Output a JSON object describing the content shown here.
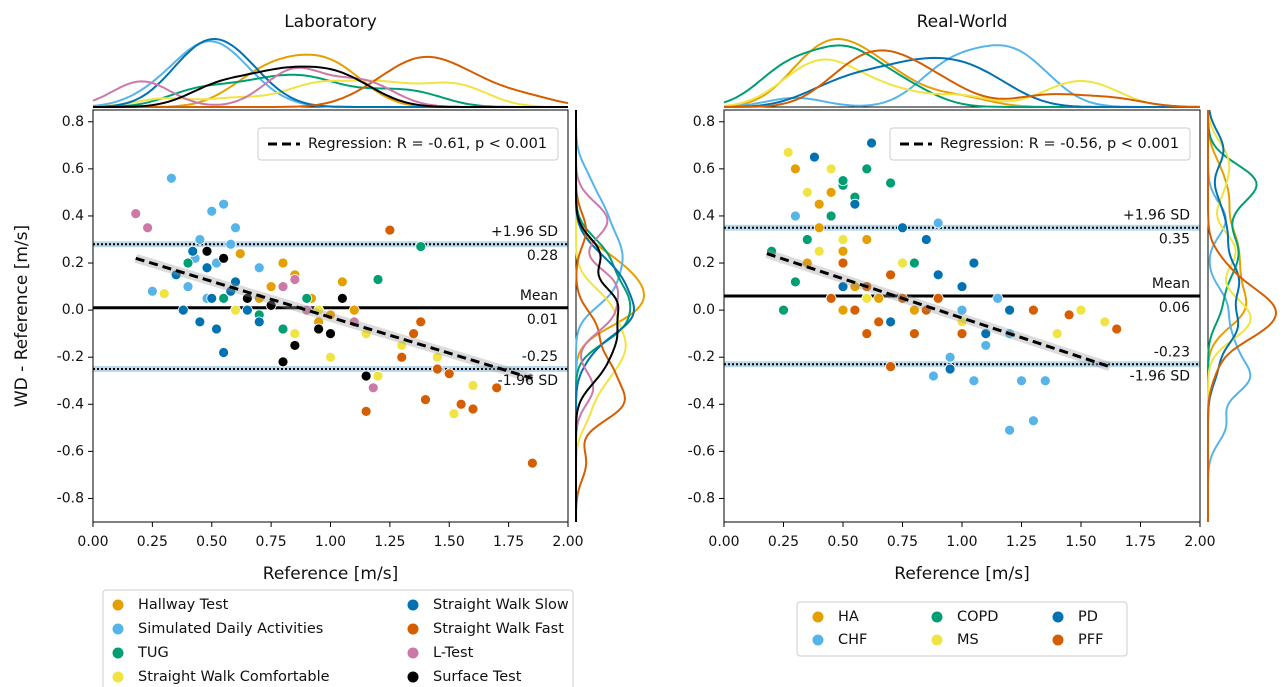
{
  "chart_data": [
    {
      "type": "scatter",
      "title": "Laboratory",
      "xlabel": "Reference [m/s]",
      "ylabel": "WD - Reference [m/s]",
      "xlim": [
        0,
        2
      ],
      "ylim": [
        -0.9,
        0.85
      ],
      "xticks": [
        {
          "value": 0,
          "label": "0.00"
        },
        {
          "value": 0.25,
          "label": "0.25"
        },
        {
          "value": 0.5,
          "label": "0.50"
        },
        {
          "value": 0.75,
          "label": "0.75"
        },
        {
          "value": 1,
          "label": "1.00"
        },
        {
          "value": 1.25,
          "label": "1.25"
        },
        {
          "value": 1.5,
          "label": "1.50"
        },
        {
          "value": 1.75,
          "label": "1.75"
        },
        {
          "value": 2,
          "label": "2.00"
        }
      ],
      "yticks": [
        -0.8,
        -0.6,
        -0.4,
        -0.2,
        {
          "value": 0,
          "label": "0.0"
        },
        0.2,
        0.4,
        0.6,
        0.8
      ],
      "mean": {
        "label": "Mean",
        "value": 0.01
      },
      "upper": {
        "label": "+1.96 SD",
        "value": 0.28
      },
      "lower": {
        "label": "-1.96 SD",
        "value": -0.25
      },
      "regression": {
        "label": "Regression: R = -0.61, p < 0.001",
        "x": [
          0.18,
          1.85
        ],
        "y": [
          0.22,
          -0.29
        ]
      },
      "series": [
        {
          "name": "Hallway Test",
          "color": "#E69F00",
          "x": [
            0.62,
            0.75,
            0.85,
            0.92,
            1.0,
            1.05,
            1.1,
            0.8,
            0.95,
            0.7
          ],
          "y": [
            0.24,
            0.1,
            0.15,
            0.05,
            -0.02,
            0.12,
            0.0,
            0.2,
            -0.05,
            0.05
          ]
        },
        {
          "name": "Simulated Daily Activities",
          "color": "#56B4E9",
          "x": [
            0.33,
            0.45,
            0.5,
            0.55,
            0.52,
            0.4,
            0.6,
            0.48,
            0.58,
            0.25,
            0.7,
            0.43
          ],
          "y": [
            0.56,
            0.3,
            0.42,
            0.45,
            0.2,
            0.1,
            0.35,
            0.05,
            0.28,
            0.08,
            0.18,
            0.22
          ]
        },
        {
          "name": "TUG",
          "color": "#009E73",
          "x": [
            0.4,
            0.55,
            0.7,
            0.9,
            1.2,
            1.38,
            0.8,
            1.0
          ],
          "y": [
            0.2,
            0.05,
            -0.02,
            0.05,
            0.13,
            0.27,
            -0.08,
            -0.1
          ]
        },
        {
          "name": "Straight Walk Comfortable",
          "color": "#F0E442",
          "x": [
            0.3,
            0.6,
            0.85,
            1.0,
            1.15,
            1.3,
            1.45,
            1.52,
            1.2,
            0.95,
            1.6
          ],
          "y": [
            0.07,
            0.0,
            -0.1,
            -0.2,
            -0.1,
            -0.15,
            -0.2,
            -0.44,
            -0.28,
            0.0,
            -0.32
          ]
        },
        {
          "name": "Straight Walk Slow",
          "color": "#0072B2",
          "x": [
            0.35,
            0.45,
            0.5,
            0.55,
            0.6,
            0.42,
            0.65,
            0.52,
            0.7,
            0.38,
            0.48,
            0.58
          ],
          "y": [
            0.15,
            -0.05,
            0.05,
            -0.18,
            0.12,
            0.25,
            0.0,
            -0.08,
            -0.05,
            0.0,
            0.18,
            0.08
          ]
        },
        {
          "name": "Straight Walk Fast",
          "color": "#D55E00",
          "x": [
            1.25,
            1.3,
            1.35,
            1.4,
            1.5,
            1.6,
            1.7,
            1.85,
            1.15,
            1.45,
            1.55,
            1.38
          ],
          "y": [
            0.34,
            -0.2,
            -0.1,
            -0.38,
            -0.27,
            -0.42,
            -0.33,
            -0.65,
            -0.43,
            -0.25,
            -0.4,
            -0.05
          ]
        },
        {
          "name": "L-Test",
          "color": "#CC79A7",
          "x": [
            0.18,
            0.23,
            0.8,
            0.9,
            1.1,
            1.18,
            0.85
          ],
          "y": [
            0.41,
            0.35,
            0.1,
            0.0,
            -0.05,
            -0.33,
            0.13
          ]
        },
        {
          "name": "Surface Test",
          "color": "#000000",
          "x": [
            0.48,
            0.55,
            0.65,
            0.75,
            0.85,
            0.95,
            1.05,
            1.15,
            0.8,
            1.0
          ],
          "y": [
            0.25,
            0.22,
            0.05,
            0.02,
            -0.15,
            -0.08,
            0.05,
            -0.28,
            -0.22,
            -0.1
          ]
        }
      ]
    },
    {
      "type": "scatter",
      "title": "Real-World",
      "xlabel": "Reference [m/s]",
      "xlim": [
        0,
        2
      ],
      "ylim": [
        -0.9,
        0.85
      ],
      "xticks": [
        {
          "value": 0,
          "label": "0.00"
        },
        {
          "value": 0.25,
          "label": "0.25"
        },
        {
          "value": 0.5,
          "label": "0.50"
        },
        {
          "value": 0.75,
          "label": "0.75"
        },
        {
          "value": 1,
          "label": "1.00"
        },
        {
          "value": 1.25,
          "label": "1.25"
        },
        {
          "value": 1.5,
          "label": "1.50"
        },
        {
          "value": 1.75,
          "label": "1.75"
        },
        {
          "value": 2,
          "label": "2.00"
        }
      ],
      "yticks": [
        -0.8,
        -0.6,
        -0.4,
        -0.2,
        {
          "value": 0,
          "label": "0.0"
        },
        0.2,
        0.4,
        0.6,
        0.8
      ],
      "mean": {
        "label": "Mean",
        "value": 0.06
      },
      "upper": {
        "label": "+1.96 SD",
        "value": 0.35
      },
      "lower": {
        "label": "-1.96 SD",
        "value": -0.23
      },
      "regression": {
        "label": "Regression: R = -0.56, p < 0.001",
        "x": [
          0.18,
          1.62
        ],
        "y": [
          0.24,
          -0.24
        ]
      },
      "series": [
        {
          "name": "HA",
          "color": "#E69F00",
          "x": [
            0.3,
            0.4,
            0.5,
            0.55,
            0.6,
            0.45,
            0.35,
            0.7,
            0.8,
            0.65,
            0.5,
            1.0,
            0.4
          ],
          "y": [
            0.6,
            0.45,
            0.25,
            0.1,
            0.3,
            0.5,
            0.2,
            0.15,
            0.0,
            0.05,
            0.0,
            -0.05,
            0.35
          ]
        },
        {
          "name": "CHF",
          "color": "#56B4E9",
          "x": [
            0.9,
            1.0,
            1.1,
            1.2,
            1.3,
            1.35,
            0.95,
            1.05,
            1.2,
            1.25,
            0.88,
            1.15,
            0.3
          ],
          "y": [
            0.37,
            0.0,
            -0.15,
            -0.51,
            -0.47,
            -0.3,
            -0.2,
            -0.3,
            -0.1,
            -0.3,
            -0.28,
            0.05,
            0.4
          ]
        },
        {
          "name": "COPD",
          "color": "#009E73",
          "x": [
            0.2,
            0.3,
            0.45,
            0.5,
            0.55,
            0.7,
            0.6,
            0.35,
            0.8,
            0.25,
            0.5
          ],
          "y": [
            0.25,
            0.12,
            0.4,
            0.53,
            0.48,
            0.54,
            0.6,
            0.3,
            0.2,
            0.0,
            0.55
          ]
        },
        {
          "name": "MS",
          "color": "#F0E442",
          "x": [
            0.27,
            0.35,
            0.5,
            0.6,
            0.75,
            1.4,
            1.5,
            1.6,
            0.4,
            1.0,
            0.45
          ],
          "y": [
            0.67,
            0.5,
            0.3,
            0.05,
            0.2,
            -0.1,
            0.0,
            -0.05,
            0.25,
            -0.05,
            0.6
          ]
        },
        {
          "name": "PD",
          "color": "#0072B2",
          "x": [
            0.38,
            0.55,
            0.62,
            0.75,
            0.85,
            0.9,
            1.0,
            1.05,
            1.1,
            1.2,
            0.7,
            0.8,
            0.95,
            0.5
          ],
          "y": [
            0.65,
            0.45,
            0.71,
            0.35,
            0.3,
            0.15,
            0.1,
            0.2,
            -0.1,
            0.0,
            -0.05,
            -0.1,
            -0.25,
            0.1
          ]
        },
        {
          "name": "PFF",
          "color": "#D55E00",
          "x": [
            0.45,
            0.55,
            0.6,
            0.65,
            0.7,
            0.75,
            0.8,
            0.85,
            0.9,
            0.5,
            0.6,
            0.7,
            1.0,
            1.3,
            1.45,
            1.65
          ],
          "y": [
            0.05,
            0.0,
            0.1,
            -0.05,
            0.15,
            0.05,
            -0.1,
            0.0,
            0.05,
            0.2,
            -0.1,
            -0.24,
            -0.1,
            0.0,
            -0.02,
            -0.08
          ]
        }
      ]
    }
  ]
}
